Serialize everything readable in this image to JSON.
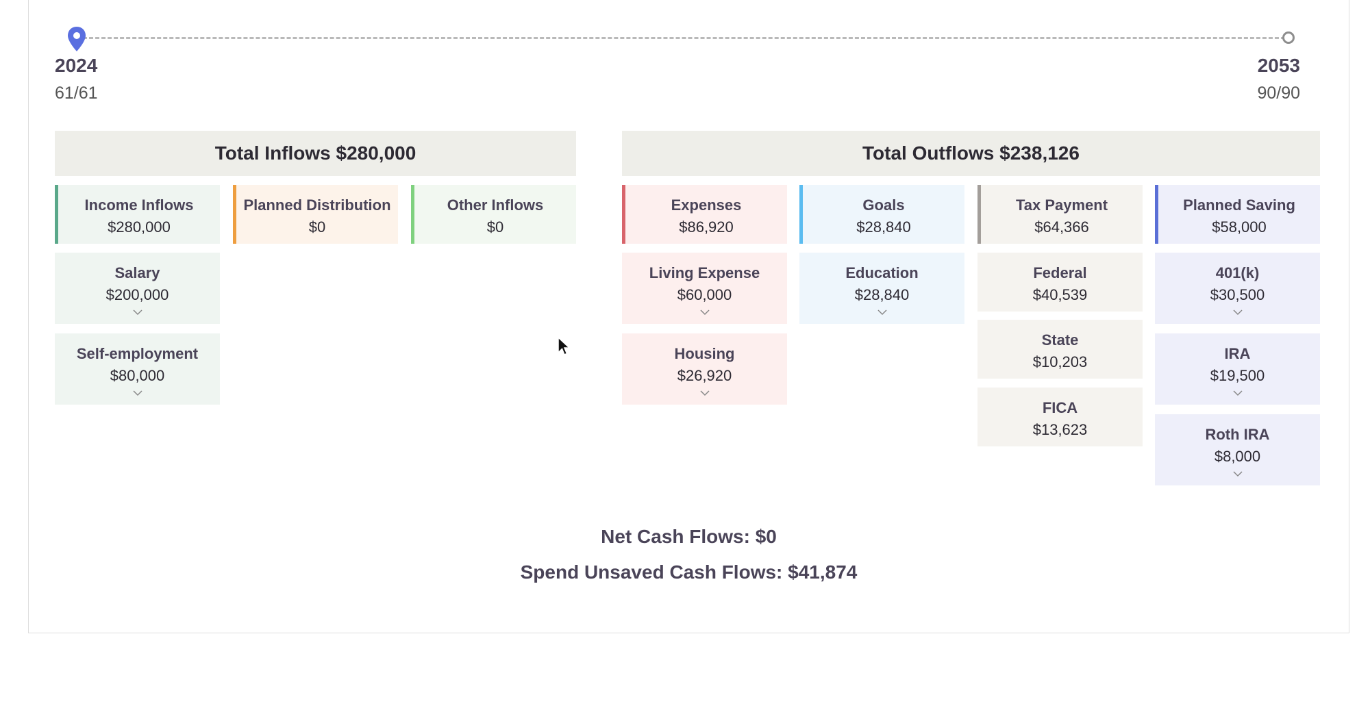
{
  "timeline": {
    "start_year": "2024",
    "start_age": "61/61",
    "end_year": "2053",
    "end_age": "90/90",
    "pin_icon": "map-pin-icon",
    "pin_color": "#5a6fe0"
  },
  "inflows": {
    "header": "Total Inflows $280,000",
    "categories": [
      {
        "title": "Income Inflows",
        "amount": "$280,000",
        "color": "#5aa88a"
      },
      {
        "title": "Planned Distribution",
        "amount": "$0",
        "color": "#ee9e3f"
      },
      {
        "title": "Other Inflows",
        "amount": "$0",
        "color": "#7fd17f"
      }
    ],
    "income_items": [
      {
        "title": "Salary",
        "amount": "$200,000"
      },
      {
        "title": "Self-employment",
        "amount": "$80,000"
      }
    ]
  },
  "outflows": {
    "header": "Total Outflows $238,126",
    "categories": [
      {
        "title": "Expenses",
        "amount": "$86,920",
        "color": "#d8646b"
      },
      {
        "title": "Goals",
        "amount": "$28,840",
        "color": "#5bbcf0"
      },
      {
        "title": "Tax Payment",
        "amount": "$64,366",
        "color": "#a39e9a"
      },
      {
        "title": "Planned Saving",
        "amount": "$58,000",
        "color": "#5a6fd6"
      }
    ],
    "expense_items": [
      {
        "title": "Living Expense",
        "amount": "$60,000"
      },
      {
        "title": "Housing",
        "amount": "$26,920"
      }
    ],
    "goal_items": [
      {
        "title": "Education",
        "amount": "$28,840"
      }
    ],
    "tax_items": [
      {
        "title": "Federal",
        "amount": "$40,539"
      },
      {
        "title": "State",
        "amount": "$10,203"
      },
      {
        "title": "FICA",
        "amount": "$13,623"
      }
    ],
    "saving_items": [
      {
        "title": "401(k)",
        "amount": "$30,500"
      },
      {
        "title": "IRA",
        "amount": "$19,500"
      },
      {
        "title": "Roth IRA",
        "amount": "$8,000"
      }
    ]
  },
  "summary": {
    "net": "Net Cash Flows: $0",
    "unsaved": "Spend Unsaved Cash Flows: $41,874"
  }
}
